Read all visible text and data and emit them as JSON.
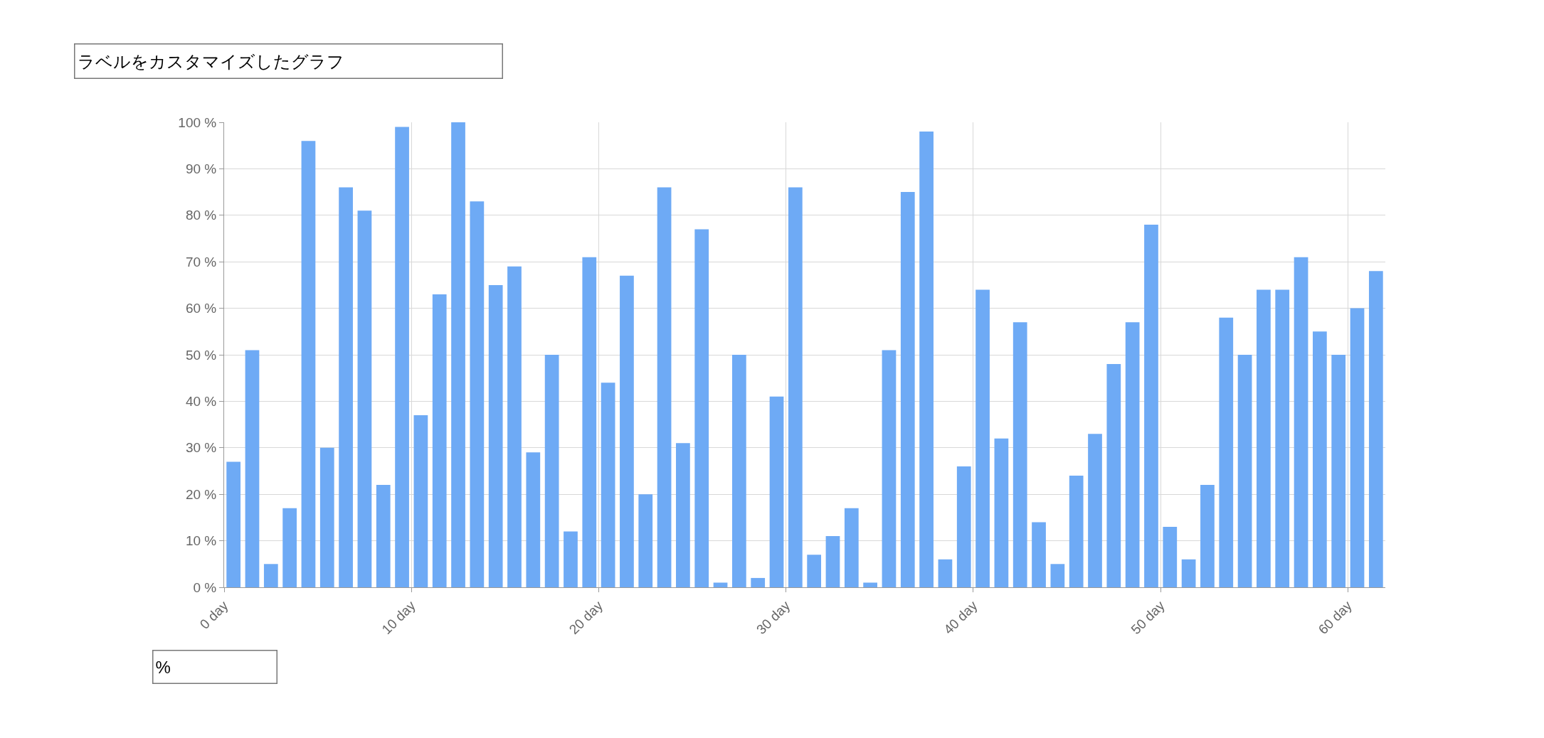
{
  "chart_data": {
    "type": "bar",
    "x": [
      0.5,
      1.5,
      2.5,
      3.5,
      4.5,
      5.5,
      6.5,
      7.5,
      8.5,
      9.5,
      10.5,
      11.5,
      12.5,
      13.5,
      14.5,
      15.5,
      16.5,
      17.5,
      18.5,
      19.5,
      20.5,
      21.5,
      22.5,
      23.5,
      24.5,
      25.5,
      26.5,
      27.5,
      28.5,
      29.5,
      30.5,
      31.5,
      32.5,
      33.5,
      34.5,
      35.5,
      36.5,
      37.5,
      38.5,
      39.5,
      40.5,
      41.5,
      42.5,
      43.5,
      44.5,
      45.5,
      46.5,
      47.5,
      48.5,
      49.5,
      50.5,
      51.5,
      52.5,
      53.5,
      54.5,
      55.5,
      56.5,
      57.5,
      58.5,
      59.5,
      60.5,
      61.5
    ],
    "values": [
      27,
      51,
      5,
      17,
      96,
      30,
      86,
      81,
      22,
      99,
      37,
      63,
      100,
      83,
      65,
      69,
      29,
      50,
      12,
      71,
      44,
      67,
      20,
      86,
      31,
      77,
      1,
      50,
      2,
      41,
      86,
      7,
      11,
      17,
      1,
      51,
      85,
      98,
      6,
      26,
      64,
      32,
      57,
      14,
      5,
      24,
      33,
      48,
      57,
      78,
      13,
      6,
      22,
      58,
      50,
      64,
      64,
      71,
      55,
      50,
      60,
      68
    ],
    "color": "#6eaaf5",
    "xlim": [
      0,
      62
    ],
    "xticks": [
      {
        "value": 0,
        "label": "0 day"
      },
      {
        "value": 10,
        "label": "10 day"
      },
      {
        "value": 20,
        "label": "20 day"
      },
      {
        "value": 30,
        "label": "30 day"
      },
      {
        "value": 40,
        "label": "40 day"
      },
      {
        "value": 50,
        "label": "50 day"
      },
      {
        "value": 60,
        "label": "60 day"
      }
    ],
    "ylim": [
      0,
      100
    ],
    "yticks": [
      {
        "value": 0,
        "label": "0 %"
      },
      {
        "value": 10,
        "label": "10 %"
      },
      {
        "value": 20,
        "label": "20 %"
      },
      {
        "value": 30,
        "label": "30 %"
      },
      {
        "value": 40,
        "label": "40 %"
      },
      {
        "value": 50,
        "label": "50 %"
      },
      {
        "value": 60,
        "label": "60 %"
      },
      {
        "value": 70,
        "label": "70 %"
      },
      {
        "value": 80,
        "label": "80 %"
      },
      {
        "value": 90,
        "label": "90 %"
      },
      {
        "value": 100,
        "label": "100 %"
      }
    ],
    "grid": true,
    "annotations": [
      "ラベルをカスタマイズしたグラフ",
      "%"
    ]
  }
}
